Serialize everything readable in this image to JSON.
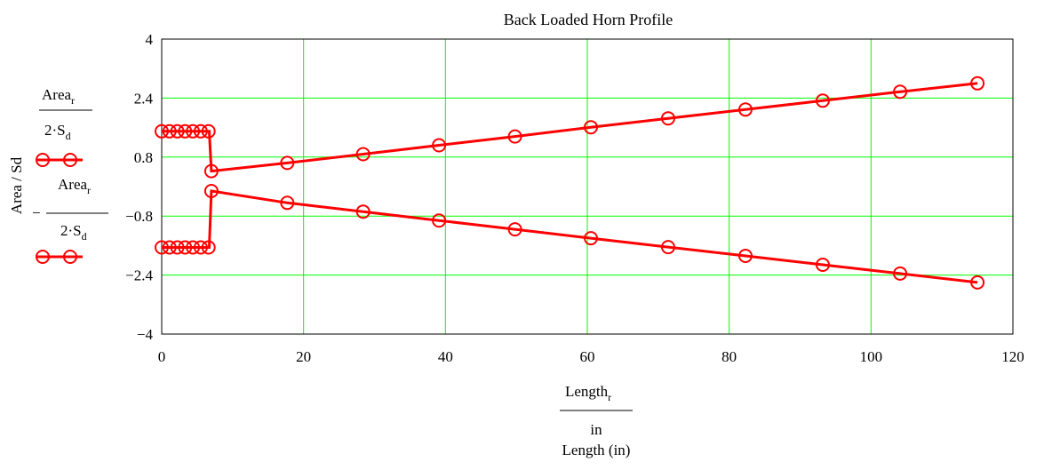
{
  "chart_data": {
    "type": "line",
    "title": "Back Loaded Horn Profile",
    "xlabel": "Length (in)",
    "xlabel_expr": {
      "numerator": "Length",
      "numerator_sub": "r",
      "denominator": "in"
    },
    "ylabel": "Area / Sd",
    "xlim": [
      0,
      120
    ],
    "ylim": [
      -4,
      4
    ],
    "xticks": [
      "0",
      "20",
      "40",
      "60",
      "80",
      "100",
      "120"
    ],
    "yticks": [
      "−4",
      "−2.4",
      "−0.8",
      "0.8",
      "2.4",
      "4"
    ],
    "xtick_values": [
      0,
      20,
      40,
      60,
      80,
      100,
      120
    ],
    "ytick_values": [
      -4,
      -2.4,
      -0.8,
      0.8,
      2.4,
      4
    ],
    "grid": true,
    "line_color": "#ff0000",
    "grid_color": "#00ff00",
    "series": [
      {
        "legend": {
          "sign": "",
          "numerator": "Area",
          "numerator_sub": "r",
          "denominator": "2·S",
          "denominator_sub": "d"
        },
        "x": [
          0,
          1.1,
          2.2,
          3.3,
          4.4,
          5.5,
          6.6,
          6.7,
          7,
          17.7,
          28.4,
          39.1,
          49.8,
          60.5,
          71.4,
          82.3,
          93.2,
          104.1,
          115
        ],
        "y": [
          1.5,
          1.5,
          1.5,
          1.5,
          1.5,
          1.5,
          1.5,
          1.5,
          0.42,
          0.64,
          0.88,
          1.12,
          1.36,
          1.61,
          1.85,
          2.09,
          2.33,
          2.57,
          2.8
        ],
        "marker_count": 18
      },
      {
        "legend": {
          "sign": "−",
          "numerator": "Area",
          "numerator_sub": "r",
          "denominator": "2·S",
          "denominator_sub": "d"
        },
        "x": [
          0,
          1.1,
          2.2,
          3.3,
          4.4,
          5.5,
          6.6,
          6.7,
          7,
          17.7,
          28.4,
          39.1,
          49.8,
          60.5,
          71.4,
          82.3,
          93.2,
          104.1,
          115
        ],
        "y": [
          -1.65,
          -1.65,
          -1.65,
          -1.65,
          -1.65,
          -1.65,
          -1.65,
          -1.65,
          -0.12,
          -0.44,
          -0.68,
          -0.92,
          -1.16,
          -1.4,
          -1.64,
          -1.88,
          -2.12,
          -2.36,
          -2.6
        ],
        "marker_count": 18
      }
    ]
  }
}
